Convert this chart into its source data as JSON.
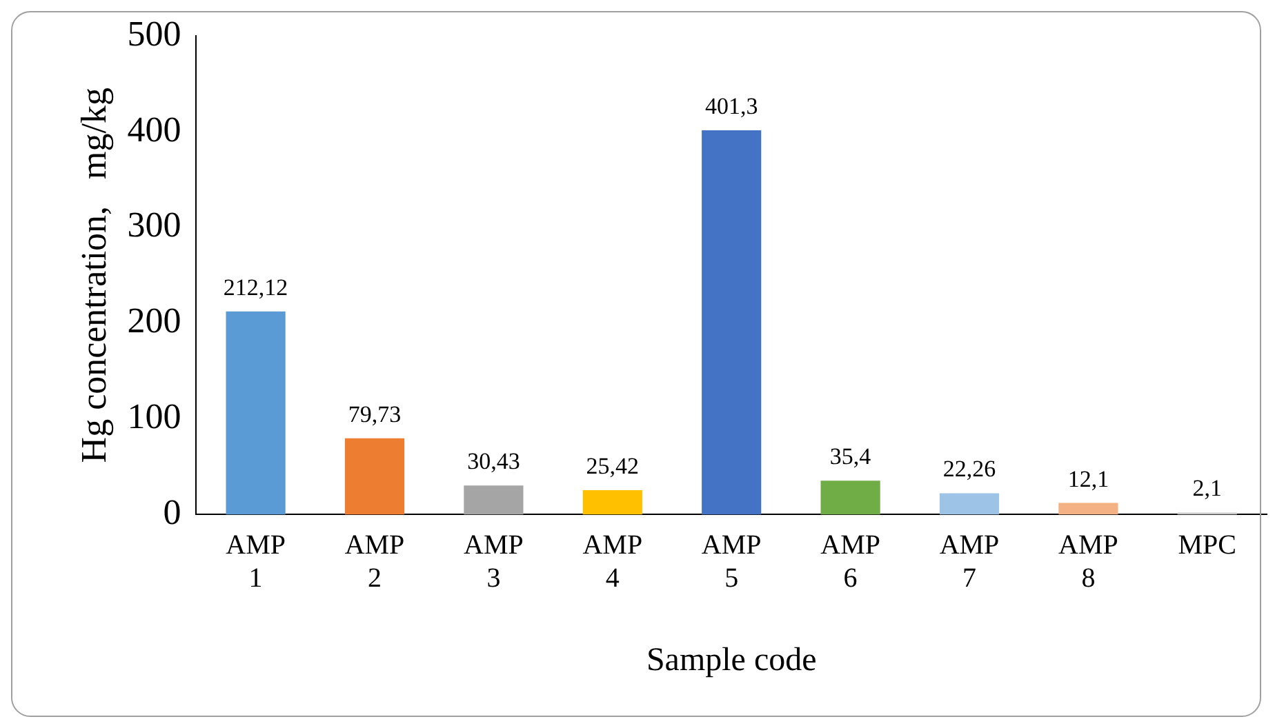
{
  "chart_data": {
    "type": "bar",
    "xlabel": "Sample code",
    "ylabel": "Hg concentration,   mg/kg",
    "categories": [
      "AMP 1",
      "AMP 2",
      "AMP 3",
      "AMP 4",
      "AMP 5",
      "AMP 6",
      "AMP 7",
      "AMP 8",
      "MPC"
    ],
    "values": [
      212.12,
      79.73,
      30.43,
      25.42,
      401.3,
      35.4,
      22.26,
      12.1,
      2.1
    ],
    "value_labels": [
      "212,12",
      "79,73",
      "30,43",
      "25,42",
      "401,3",
      "35,4",
      "22,26",
      "12,1",
      "2,1"
    ],
    "colors": [
      "#5b9bd5",
      "#ed7d31",
      "#a5a5a5",
      "#ffc000",
      "#4472c4",
      "#70ad47",
      "#9dc3e6",
      "#f4b183",
      "#c9c9c9"
    ],
    "ylim": [
      0,
      500
    ],
    "yticks": [
      0,
      100,
      200,
      300,
      400,
      500
    ],
    "grid": false,
    "legend": false
  }
}
